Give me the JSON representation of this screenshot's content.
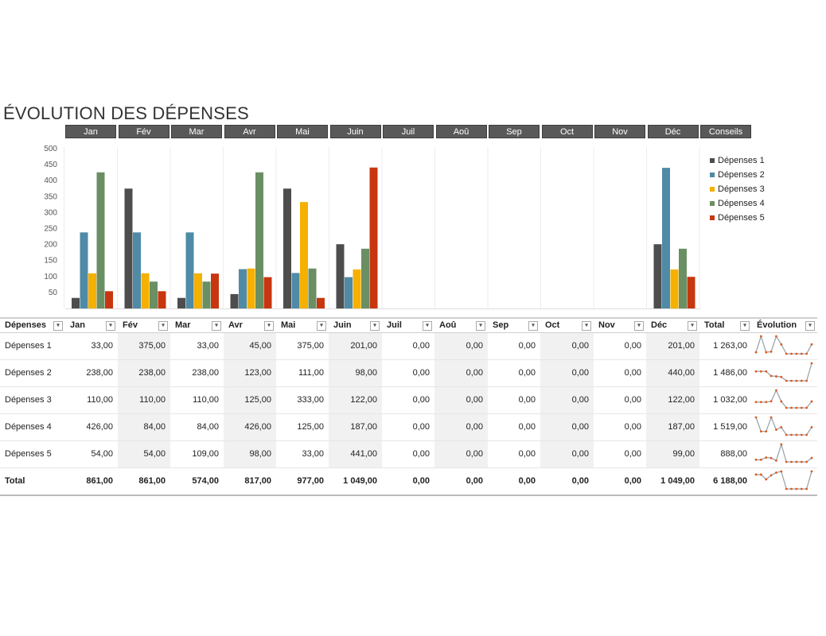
{
  "title": "ÉVOLUTION DES DÉPENSES",
  "month_headers": [
    "Jan",
    "Fév",
    "Mar",
    "Avr",
    "Mai",
    "Juin",
    "Juil",
    "Aoû",
    "Sep",
    "Oct",
    "Nov",
    "Déc",
    "Conseils"
  ],
  "colors": {
    "Dépenses 1": "#4d4d4d",
    "Dépenses 2": "#4f8aa6",
    "Dépenses 3": "#f5b000",
    "Dépenses 4": "#6a8f63",
    "Dépenses 5": "#c8360f",
    "header_bg": "#595959",
    "spark_line": "#9aa5ad",
    "spark_marker": "#e0581c"
  },
  "chart_data": {
    "type": "bar",
    "categories": [
      "Jan",
      "Fév",
      "Mar",
      "Avr",
      "Mai",
      "Juin",
      "Juil",
      "Aoû",
      "Sep",
      "Oct",
      "Nov",
      "Déc"
    ],
    "ylim": [
      0,
      500
    ],
    "yticks": [
      50,
      100,
      150,
      200,
      250,
      300,
      350,
      400,
      450,
      500
    ],
    "legend_position": "right",
    "series": [
      {
        "name": "Dépenses 1",
        "values": [
          33,
          375,
          33,
          45,
          375,
          201,
          0,
          0,
          0,
          0,
          0,
          201
        ]
      },
      {
        "name": "Dépenses 2",
        "values": [
          238,
          238,
          238,
          123,
          111,
          98,
          0,
          0,
          0,
          0,
          0,
          440
        ]
      },
      {
        "name": "Dépenses 3",
        "values": [
          110,
          110,
          110,
          125,
          333,
          122,
          0,
          0,
          0,
          0,
          0,
          122
        ]
      },
      {
        "name": "Dépenses 4",
        "values": [
          426,
          84,
          84,
          426,
          125,
          187,
          0,
          0,
          0,
          0,
          0,
          187
        ]
      },
      {
        "name": "Dépenses 5",
        "values": [
          54,
          54,
          109,
          98,
          33,
          441,
          0,
          0,
          0,
          0,
          0,
          99
        ]
      }
    ]
  },
  "table": {
    "headers": [
      "Dépenses",
      "Jan",
      "Fév",
      "Mar",
      "Avr",
      "Mai",
      "Juin",
      "Juil",
      "Aoû",
      "Sep",
      "Oct",
      "Nov",
      "Déc",
      "Total",
      "Évolution"
    ],
    "rows": [
      {
        "label": "Dépenses 1",
        "cells": [
          "33,00",
          "375,00",
          "33,00",
          "45,00",
          "375,00",
          "201,00",
          "0,00",
          "0,00",
          "0,00",
          "0,00",
          "0,00",
          "201,00",
          "1 263,00"
        ],
        "spark": [
          33,
          375,
          33,
          45,
          375,
          201,
          0,
          0,
          0,
          0,
          0,
          201
        ]
      },
      {
        "label": "Dépenses 2",
        "cells": [
          "238,00",
          "238,00",
          "238,00",
          "123,00",
          "111,00",
          "98,00",
          "0,00",
          "0,00",
          "0,00",
          "0,00",
          "0,00",
          "440,00",
          "1 486,00"
        ],
        "spark": [
          238,
          238,
          238,
          123,
          111,
          98,
          0,
          0,
          0,
          0,
          0,
          440
        ]
      },
      {
        "label": "Dépenses 3",
        "cells": [
          "110,00",
          "110,00",
          "110,00",
          "125,00",
          "333,00",
          "122,00",
          "0,00",
          "0,00",
          "0,00",
          "0,00",
          "0,00",
          "122,00",
          "1 032,00"
        ],
        "spark": [
          110,
          110,
          110,
          125,
          333,
          122,
          0,
          0,
          0,
          0,
          0,
          122
        ]
      },
      {
        "label": "Dépenses 4",
        "cells": [
          "426,00",
          "84,00",
          "84,00",
          "426,00",
          "125,00",
          "187,00",
          "0,00",
          "0,00",
          "0,00",
          "0,00",
          "0,00",
          "187,00",
          "1 519,00"
        ],
        "spark": [
          426,
          84,
          84,
          426,
          125,
          187,
          0,
          0,
          0,
          0,
          0,
          187
        ]
      },
      {
        "label": "Dépenses 5",
        "cells": [
          "54,00",
          "54,00",
          "109,00",
          "98,00",
          "33,00",
          "441,00",
          "0,00",
          "0,00",
          "0,00",
          "0,00",
          "0,00",
          "99,00",
          "888,00"
        ],
        "spark": [
          54,
          54,
          109,
          98,
          33,
          441,
          0,
          0,
          0,
          0,
          0,
          99
        ]
      }
    ],
    "total": {
      "label": "Total",
      "cells": [
        "861,00",
        "861,00",
        "574,00",
        "817,00",
        "977,00",
        "1 049,00",
        "0,00",
        "0,00",
        "0,00",
        "0,00",
        "0,00",
        "1 049,00",
        "6 188,00"
      ],
      "spark": [
        861,
        861,
        574,
        817,
        977,
        1049,
        0,
        0,
        0,
        0,
        0,
        1049
      ]
    },
    "filter_icon": "dropdown-arrow-icon"
  }
}
